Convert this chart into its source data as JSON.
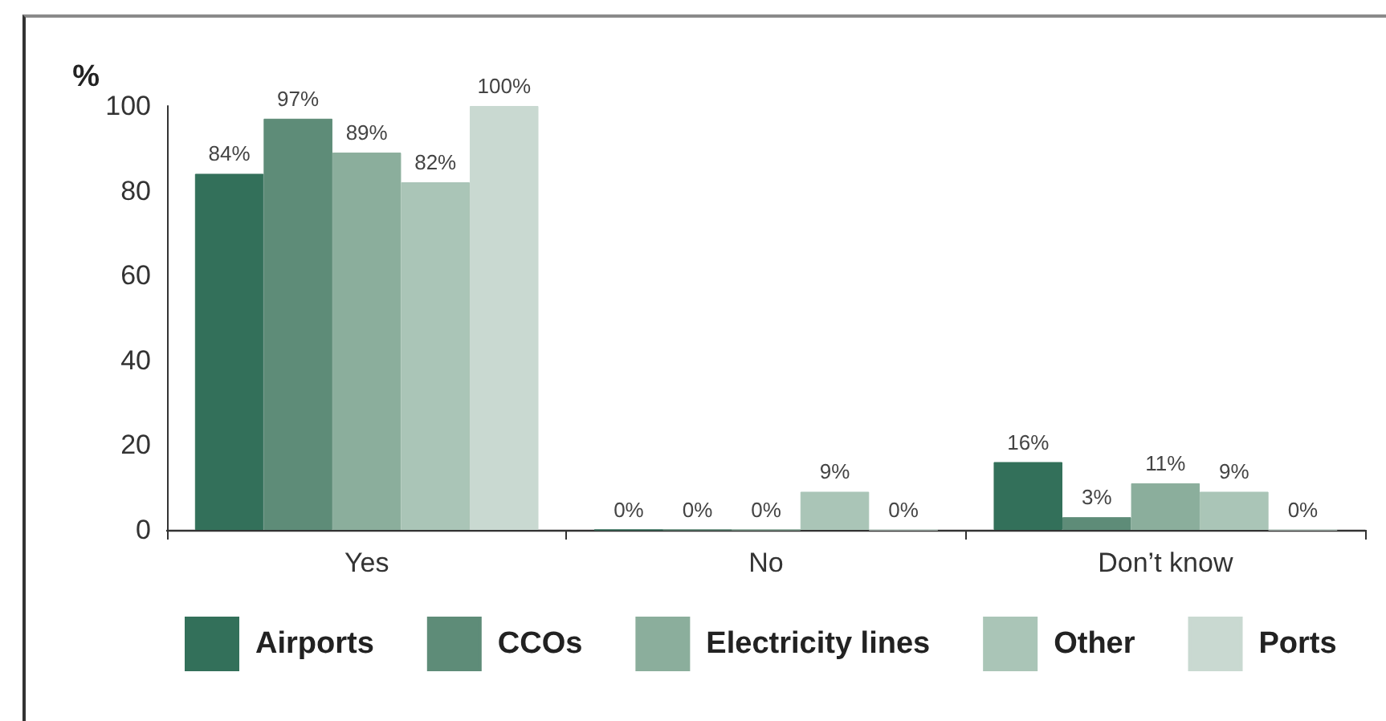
{
  "chart_data": {
    "type": "bar",
    "categories": [
      "Yes",
      "No",
      "Don’t know"
    ],
    "ylabel": "%",
    "ylim": [
      0,
      100
    ],
    "yticks": [
      0,
      20,
      40,
      60,
      80,
      100
    ],
    "grid": false,
    "legend": "bottom",
    "series": [
      {
        "name": "Airports",
        "color": "#33705a",
        "values": [
          84,
          0,
          16
        ],
        "value_labels": [
          "84%",
          "0%",
          "16%"
        ]
      },
      {
        "name": "CCOs",
        "color": "#5e8c78",
        "values": [
          97,
          0,
          3
        ],
        "value_labels": [
          "97%",
          "0%",
          "3%"
        ]
      },
      {
        "name": "Electricity lines",
        "color": "#8bae9c",
        "values": [
          89,
          0,
          11
        ],
        "value_labels": [
          "89%",
          "0%",
          "11%"
        ]
      },
      {
        "name": "Other",
        "color": "#aac5b7",
        "values": [
          82,
          9,
          9
        ],
        "value_labels": [
          "82%",
          "9%",
          "9%"
        ]
      },
      {
        "name": "Ports",
        "color": "#c9d9d1",
        "values": [
          100,
          0,
          0
        ],
        "value_labels": [
          "100%",
          "0%",
          "0%"
        ]
      }
    ]
  }
}
